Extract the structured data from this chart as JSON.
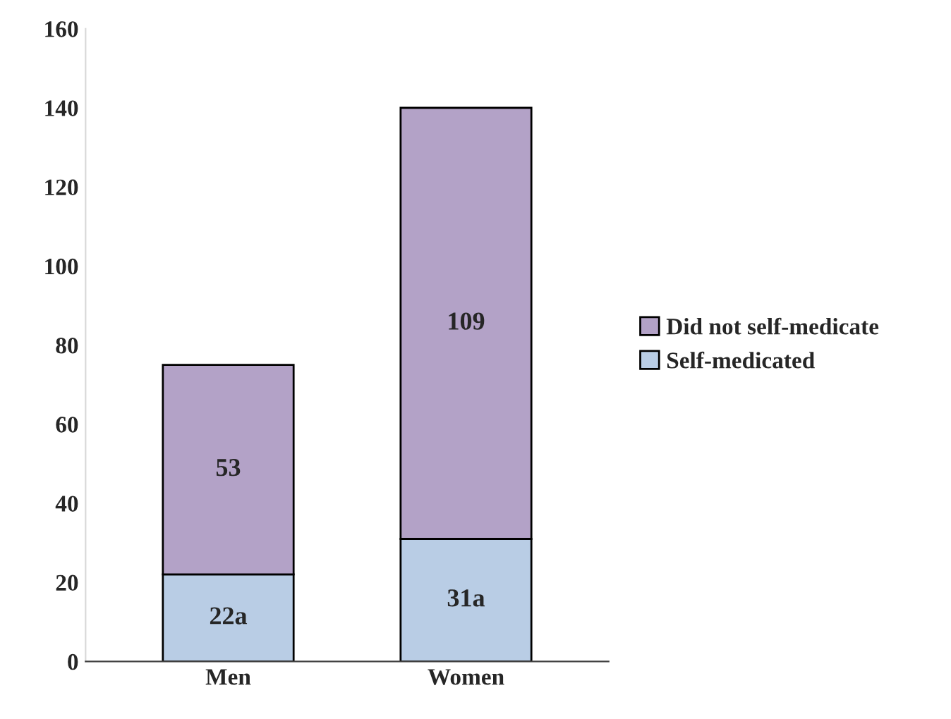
{
  "chart_data": {
    "type": "bar",
    "stacked": true,
    "categories": [
      "Men",
      "Women"
    ],
    "series": [
      {
        "name": "Self-medicated",
        "color": "#b9cde5",
        "values": [
          22,
          31
        ],
        "value_labels": [
          "22a",
          "31a"
        ]
      },
      {
        "name": "Did not self-medicate",
        "color": "#b3a2c7",
        "values": [
          53,
          109
        ],
        "value_labels": [
          "53",
          "109"
        ]
      }
    ],
    "ylim": [
      0,
      160
    ],
    "yticks": [
      0,
      20,
      40,
      60,
      80,
      100,
      120,
      140,
      160
    ],
    "grid": false,
    "legend": "right"
  }
}
